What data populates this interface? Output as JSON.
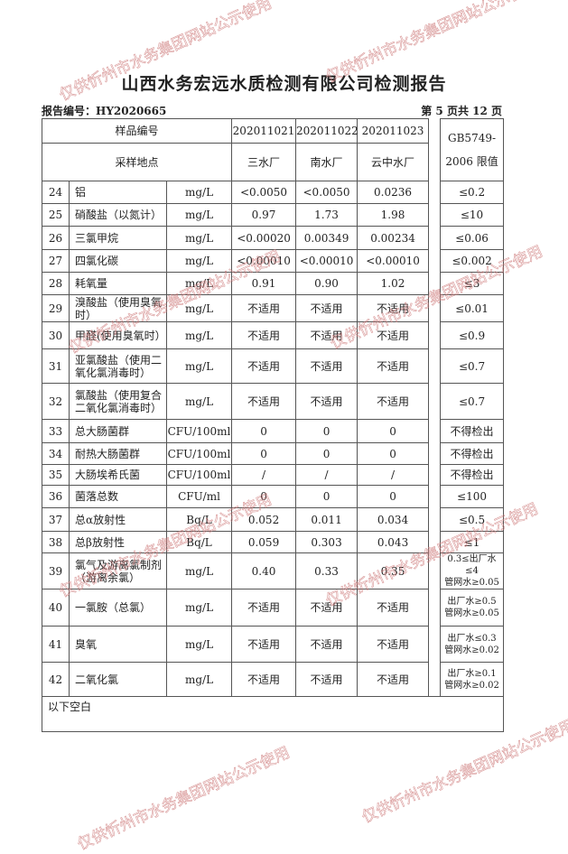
{
  "title": "山西水务宏远水质检测有限公司检测报告",
  "report_no": "报告编号：HY2020665",
  "page_no": "第 5 页共 12 页",
  "header": {
    "sample_no_label": "样品编号",
    "site_label": "采样地点",
    "samples": [
      "202011021",
      "202011022",
      "202011023"
    ],
    "sites": [
      "三水厂",
      "南水厂",
      "云中水厂"
    ],
    "limit_label_1": "GB5749-",
    "limit_label_2": "2006 限值"
  },
  "rows": [
    {
      "no": "24",
      "name": "铝",
      "unit": "mg/L",
      "v": [
        "<0.0050",
        "<0.0050",
        "0.0236"
      ],
      "limit": "≤0.2"
    },
    {
      "no": "25",
      "name": "硝酸盐（以氮计）",
      "unit": "mg/L",
      "v": [
        "0.97",
        "1.73",
        "1.98"
      ],
      "limit": "≤10"
    },
    {
      "no": "26",
      "name": "三氯甲烷",
      "unit": "mg/L",
      "v": [
        "<0.00020",
        "0.00349",
        "0.00234"
      ],
      "limit": "≤0.06"
    },
    {
      "no": "27",
      "name": "四氯化碳",
      "unit": "mg/L",
      "v": [
        "<0.00010",
        "<0.00010",
        "<0.00010"
      ],
      "limit": "≤0.002"
    },
    {
      "no": "28",
      "name": "耗氧量",
      "unit": "mg/L",
      "v": [
        "0.91",
        "0.90",
        "1.02"
      ],
      "limit": "≤3"
    },
    {
      "no": "29",
      "name": "溴酸盐（使用臭氧时）",
      "unit": "mg/L",
      "v": [
        "不适用",
        "不适用",
        "不适用"
      ],
      "limit": "≤0.01"
    },
    {
      "no": "30",
      "name": "甲醛(使用臭氧时）",
      "unit": "mg/L",
      "v": [
        "不适用",
        "不适用",
        "不适用"
      ],
      "limit": "≤0.9"
    },
    {
      "no": "31",
      "name": "亚氯酸盐（使用二氧化氯消毒时）",
      "unit": "mg/L",
      "v": [
        "不适用",
        "不适用",
        "不适用"
      ],
      "limit": "≤0.7"
    },
    {
      "no": "32",
      "name": "氯酸盐（使用复合二氧化氯消毒时）",
      "unit": "mg/L",
      "v": [
        "不适用",
        "不适用",
        "不适用"
      ],
      "limit": "≤0.7"
    },
    {
      "no": "33",
      "name": "总大肠菌群",
      "unit": "CFU/100ml",
      "v": [
        "0",
        "0",
        "0"
      ],
      "limit": "不得检出"
    },
    {
      "no": "34",
      "name": "耐热大肠菌群",
      "unit": "CFU/100ml",
      "v": [
        "0",
        "0",
        "0"
      ],
      "limit": "不得检出"
    },
    {
      "no": "35",
      "name": "大肠埃希氏菌",
      "unit": "CFU/100ml",
      "v": [
        "/",
        "/",
        "/"
      ],
      "limit": "不得检出"
    },
    {
      "no": "36",
      "name": "菌落总数",
      "unit": "CFU/ml",
      "v": [
        "0",
        "0",
        "0"
      ],
      "limit": "≤100"
    },
    {
      "no": "37",
      "name": "总α放射性",
      "unit": "Bq/L",
      "v": [
        "0.052",
        "0.011",
        "0.034"
      ],
      "limit": "≤0.5"
    },
    {
      "no": "38",
      "name": "总β放射性",
      "unit": "Bq/L",
      "v": [
        "0.059",
        "0.303",
        "0.043"
      ],
      "limit": "≤1"
    },
    {
      "no": "39",
      "name": "氯气及游离氯制剂（游离余氯）",
      "unit": "mg/L",
      "v": [
        "0.40",
        "0.33",
        "0.35"
      ],
      "limit": "0.3≤出厂水≤4 管网水≥0.05"
    },
    {
      "no": "40",
      "name": "一氯胺（总氯）",
      "unit": "mg/L",
      "v": [
        "不适用",
        "不适用",
        "不适用"
      ],
      "limit": "出厂水≥0.5 管网水≥0.05"
    },
    {
      "no": "41",
      "name": "臭氧",
      "unit": "mg/L",
      "v": [
        "不适用",
        "不适用",
        "不适用"
      ],
      "limit": "出厂水≤0.3 管网水≥0.02"
    },
    {
      "no": "42",
      "name": "二氧化氯",
      "unit": "mg/L",
      "v": [
        "不适用",
        "不适用",
        "不适用"
      ],
      "limit": "出厂水≥0.1 管网水≥0.02"
    }
  ],
  "footer_note": "以下空白",
  "watermark": "仅供忻州市水务集团网站公示使用"
}
